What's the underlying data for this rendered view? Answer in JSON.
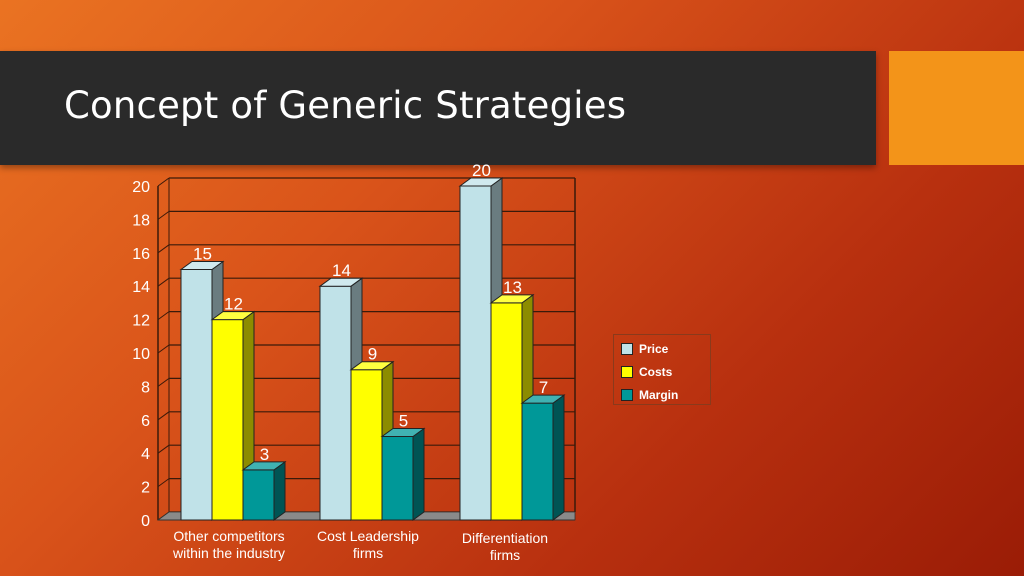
{
  "slide": {
    "title": "Concept of Generic Strategies"
  },
  "chart_data": {
    "type": "bar",
    "title": "",
    "xlabel": "",
    "ylabel": "",
    "ylim": [
      0,
      20
    ],
    "yticks": [
      "0",
      "2",
      "4",
      "6",
      "8",
      "10",
      "12",
      "14",
      "16",
      "18",
      "20"
    ],
    "categories": [
      [
        "Other competitors",
        "within the industry"
      ],
      [
        "Cost Leadership",
        "firms"
      ],
      [
        "Differentiation",
        "firms"
      ]
    ],
    "series": [
      {
        "name": "Price",
        "values": [
          15,
          14,
          20
        ],
        "color": "#c0e2e8"
      },
      {
        "name": "Costs",
        "values": [
          12,
          9,
          13
        ],
        "color": "#ffff00"
      },
      {
        "name": "Margin",
        "values": [
          3,
          5,
          7
        ],
        "color": "#009898"
      }
    ],
    "data_labels": [
      [
        "15",
        "14",
        "20"
      ],
      [
        "12",
        "9",
        "13"
      ],
      [
        "3",
        "5",
        "7"
      ]
    ],
    "grid": true,
    "legend_position": "right",
    "style": "3d-clustered"
  },
  "colors": {
    "title_bar": "#2a2a2a",
    "accent_box": "#f39419",
    "grid_line": "#3a1a0a"
  }
}
